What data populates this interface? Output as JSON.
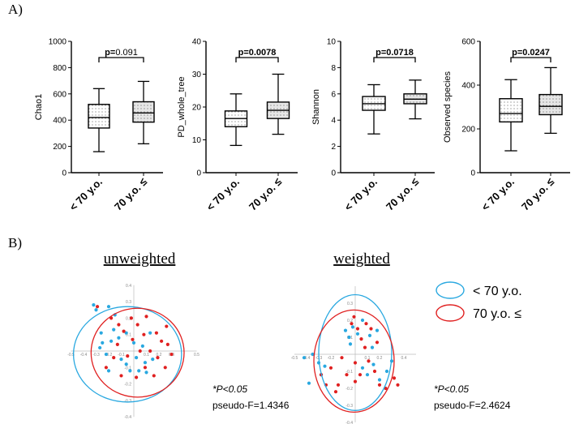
{
  "labels": {
    "panel_a": "A)",
    "panel_b": "B)"
  },
  "colors": {
    "young": "#29a8e0",
    "old": "#e02020",
    "box_fill": "#e6e6e6"
  },
  "chart_data": [
    {
      "type": "box",
      "ylabel": "Chao1",
      "ylim": [
        0,
        1000
      ],
      "yticks": [
        "0",
        "200",
        "400",
        "600",
        "800",
        "1000"
      ],
      "ytick_values": [
        0,
        200,
        400,
        600,
        800,
        1000
      ],
      "categories": [
        "< 70 y.o.",
        "70 y.o. ≤"
      ],
      "p_label": "p=",
      "p_value": "0.091",
      "p_bold": false,
      "boxes": [
        {
          "min": 160,
          "q1": 340,
          "median": 420,
          "q3": 520,
          "max": 640
        },
        {
          "min": 220,
          "q1": 385,
          "median": 455,
          "q3": 540,
          "max": 695
        }
      ]
    },
    {
      "type": "box",
      "ylabel": "PD_whole_tree",
      "ylim": [
        0,
        40
      ],
      "yticks": [
        "0",
        "10",
        "20",
        "30",
        "40"
      ],
      "ytick_values": [
        0,
        10,
        20,
        30,
        40
      ],
      "categories": [
        "< 70 y.o.",
        "70 y.o. ≤"
      ],
      "p_label": "p=",
      "p_value": "0.0078",
      "p_bold": true,
      "boxes": [
        {
          "min": 8.3,
          "q1": 14,
          "median": 16.5,
          "q3": 18.8,
          "max": 24
        },
        {
          "min": 11.7,
          "q1": 16.5,
          "median": 19,
          "q3": 21.5,
          "max": 30
        }
      ]
    },
    {
      "type": "box",
      "ylabel": "Shannon",
      "ylim": [
        0,
        10
      ],
      "yticks": [
        "0",
        "2",
        "4",
        "6",
        "8",
        "10"
      ],
      "ytick_values": [
        0,
        2,
        4,
        6,
        8,
        10
      ],
      "categories": [
        "< 70 y.o.",
        "70 y.o. ≤"
      ],
      "p_label": "p=",
      "p_value": "0.0718",
      "p_bold": true,
      "boxes": [
        {
          "min": 2.95,
          "q1": 4.75,
          "median": 5.25,
          "q3": 5.8,
          "max": 6.7
        },
        {
          "min": 4.1,
          "q1": 5.25,
          "median": 5.6,
          "q3": 6.0,
          "max": 7.05
        }
      ]
    },
    {
      "type": "box",
      "ylabel": "Observed species",
      "ylim": [
        0,
        600
      ],
      "yticks": [
        "0",
        "200",
        "400",
        "600"
      ],
      "ytick_values": [
        0,
        200,
        400,
        600
      ],
      "categories": [
        "< 70 y.o.",
        "70 y.o. ≤"
      ],
      "p_label": "p=",
      "p_value": "0.0247",
      "p_bold": true,
      "boxes": [
        {
          "min": 100,
          "q1": 232,
          "median": 270,
          "q3": 338,
          "max": 425
        },
        {
          "min": 180,
          "q1": 265,
          "median": 303,
          "q3": 357,
          "max": 480
        }
      ]
    },
    {
      "type": "scatter",
      "title": "unweighted",
      "xlim": [
        -0.5,
        0.5
      ],
      "ylim": [
        -0.4,
        0.4
      ],
      "xtick_labels": [
        "-0.5",
        "-0.4",
        "-0.3",
        "-0.2",
        "-0.1",
        "0.1",
        "0.2",
        "0.3",
        "0.5"
      ],
      "xtick_values": [
        -0.5,
        -0.4,
        -0.3,
        -0.2,
        -0.1,
        0.1,
        0.2,
        0.3,
        0.5
      ],
      "ytick_labels": [
        "0.4",
        "0.3",
        "0.2",
        "0.1",
        "-0.1",
        "-0.2",
        "-0.3",
        "-0.4"
      ],
      "ytick_values": [
        0.4,
        0.3,
        0.2,
        0.1,
        -0.1,
        -0.2,
        -0.3,
        -0.4
      ],
      "stat_p": "*P<0.05",
      "stat_f": "pseudo-F=1.4346",
      "ellipses": [
        {
          "group": "young",
          "cx": -0.05,
          "cy": -0.02,
          "rx": 0.43,
          "ry": 0.29
        },
        {
          "group": "old",
          "cx": 0.03,
          "cy": -0.01,
          "rx": 0.37,
          "ry": 0.27
        }
      ],
      "series": [
        {
          "name": "< 70 y.o.",
          "group": "young",
          "points": [
            [
              -0.32,
              0.28
            ],
            [
              -0.3,
              0.25
            ],
            [
              -0.2,
              0.27
            ],
            [
              -0.15,
              0.22
            ],
            [
              -0.26,
              0.11
            ],
            [
              -0.25,
              0.05
            ],
            [
              -0.22,
              -0.02
            ],
            [
              -0.2,
              -0.12
            ],
            [
              -0.18,
              0.06
            ],
            [
              -0.12,
              0.08
            ],
            [
              -0.1,
              -0.05
            ],
            [
              -0.06,
              0.11
            ],
            [
              -0.06,
              -0.08
            ],
            [
              -0.03,
              -0.12
            ],
            [
              0.0,
              0.05
            ],
            [
              0.02,
              -0.04
            ],
            [
              0.04,
              -0.12
            ],
            [
              0.07,
              0.03
            ],
            [
              0.09,
              -0.07
            ],
            [
              0.1,
              -0.13
            ],
            [
              0.13,
              0.11
            ],
            [
              0.15,
              -0.05
            ],
            [
              -0.16,
              0.13
            ],
            [
              -0.27,
              0.02
            ]
          ]
        },
        {
          "name": "70 y.o. ≤",
          "group": "old",
          "points": [
            [
              -0.29,
              0.27
            ],
            [
              -0.18,
              0.2
            ],
            [
              -0.12,
              0.16
            ],
            [
              -0.08,
              0.12
            ],
            [
              -0.02,
              0.2
            ],
            [
              0.03,
              0.16
            ],
            [
              0.1,
              0.21
            ],
            [
              0.18,
              0.11
            ],
            [
              0.22,
              0.06
            ],
            [
              0.27,
              0.04
            ],
            [
              0.3,
              -0.02
            ],
            [
              0.25,
              -0.1
            ],
            [
              0.19,
              -0.04
            ],
            [
              0.16,
              -0.15
            ],
            [
              0.13,
              0.0
            ],
            [
              0.09,
              -0.1
            ],
            [
              0.05,
              0.0
            ],
            [
              -0.01,
              0.07
            ],
            [
              -0.05,
              -0.03
            ],
            [
              -0.1,
              -0.15
            ],
            [
              -0.16,
              -0.04
            ],
            [
              -0.22,
              -0.1
            ],
            [
              -0.13,
              0.04
            ],
            [
              0.08,
              0.1
            ],
            [
              0.26,
              0.15
            ],
            [
              0.02,
              -0.16
            ]
          ]
        }
      ]
    },
    {
      "type": "scatter",
      "title": "weighted",
      "xlim": [
        -0.5,
        0.5
      ],
      "ylim": [
        -0.4,
        0.4
      ],
      "xtick_labels": [
        "-0.5",
        "-0.4",
        "-0.3",
        "-0.2",
        "0.1",
        "0.2",
        "0.4"
      ],
      "xtick_values": [
        -0.5,
        -0.4,
        -0.3,
        -0.2,
        0.1,
        0.2,
        0.4
      ],
      "ytick_labels": [
        "0.3",
        "0.2",
        "0.1",
        "-0.1",
        "-0.2",
        "-0.3",
        "-0.4"
      ],
      "ytick_values": [
        0.3,
        0.2,
        0.1,
        -0.1,
        -0.2,
        -0.3,
        -0.4
      ],
      "stat_p": "*P<0.05",
      "stat_f": "pseudo-F=2.4624",
      "ellipses": [
        {
          "group": "young",
          "cx": 0.0,
          "cy": 0.01,
          "rx": 0.3,
          "ry": 0.34
        },
        {
          "group": "old",
          "cx": -0.01,
          "cy": -0.04,
          "rx": 0.33,
          "ry": 0.3
        }
      ],
      "series": [
        {
          "name": "< 70 y.o.",
          "group": "young",
          "points": [
            [
              -0.42,
              -0.02
            ],
            [
              -0.38,
              -0.17
            ],
            [
              -0.35,
              0.0
            ],
            [
              -0.3,
              -0.05
            ],
            [
              -0.25,
              -0.07
            ],
            [
              -0.08,
              0.14
            ],
            [
              -0.05,
              0.1
            ],
            [
              -0.02,
              0.16
            ],
            [
              0.02,
              0.12
            ],
            [
              0.06,
              0.2
            ],
            [
              0.12,
              0.11
            ],
            [
              0.18,
              0.14
            ],
            [
              0.06,
              -0.08
            ],
            [
              0.1,
              -0.12
            ],
            [
              0.15,
              -0.06
            ],
            [
              0.2,
              -0.15
            ],
            [
              0.26,
              -0.1
            ],
            [
              0.3,
              -0.04
            ],
            [
              -0.04,
              0.06
            ],
            [
              0.14,
              0.04
            ],
            [
              -0.28,
              -0.12
            ]
          ]
        },
        {
          "name": "70 y.o. ≤",
          "group": "old",
          "points": [
            [
              -0.28,
              -0.12
            ],
            [
              -0.2,
              -0.08
            ],
            [
              -0.14,
              -0.18
            ],
            [
              -0.07,
              -0.12
            ],
            [
              0.0,
              -0.16
            ],
            [
              -0.03,
              0.18
            ],
            [
              0.02,
              0.15
            ],
            [
              0.05,
              0.09
            ],
            [
              0.09,
              0.18
            ],
            [
              0.13,
              0.15
            ],
            [
              0.08,
              0.04
            ],
            [
              0.0,
              -0.05
            ],
            [
              0.11,
              -0.04
            ],
            [
              0.16,
              -0.1
            ],
            [
              0.2,
              -0.18
            ],
            [
              0.25,
              -0.2
            ],
            [
              0.32,
              -0.14
            ],
            [
              0.35,
              -0.18
            ],
            [
              -0.24,
              -0.18
            ],
            [
              -0.11,
              -0.02
            ],
            [
              -0.01,
              0.22
            ],
            [
              0.04,
              -0.12
            ],
            [
              0.18,
              0.07
            ],
            [
              -0.16,
              -0.22
            ]
          ]
        }
      ]
    }
  ],
  "legend": [
    {
      "label": "< 70 y.o.",
      "group": "young"
    },
    {
      "label": "70 y.o. ≤",
      "group": "old"
    }
  ]
}
